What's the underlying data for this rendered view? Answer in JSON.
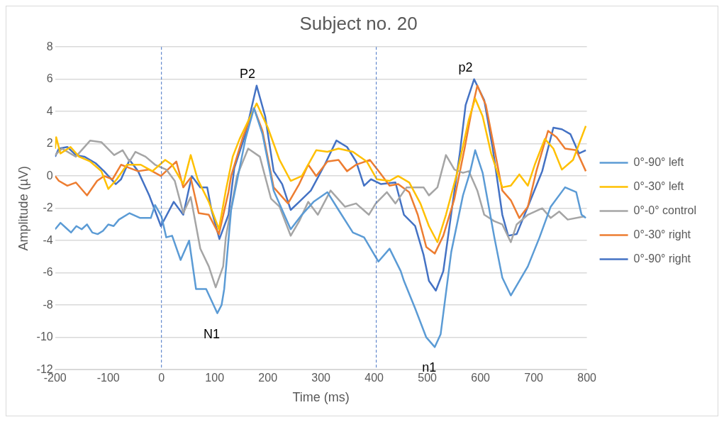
{
  "chart_data": {
    "type": "line",
    "title": "Subject no. 20",
    "xlabel": "Time (ms)",
    "ylabel": "Amplitude (µV)",
    "xlim": [
      -200,
      800
    ],
    "xticks": [
      -200,
      -100,
      0,
      100,
      200,
      300,
      400,
      500,
      600,
      700,
      800
    ],
    "ylim": [
      -12,
      8
    ],
    "yticks": [
      -12,
      -10,
      -8,
      -6,
      -4,
      -2,
      0,
      2,
      4,
      6,
      8
    ],
    "grid": "y",
    "legend": "right",
    "marker": "none",
    "line_style": "solid",
    "ref_lines": [
      {
        "axis": "x",
        "value": 0,
        "color": "#4472c4",
        "line_style": "dashed"
      },
      {
        "axis": "x",
        "value": 404,
        "color": "#4472c4",
        "line_style": "dashed"
      }
    ],
    "annotations": [
      {
        "text": "N1",
        "x": 105,
        "y": -8.5
      },
      {
        "text": "P2",
        "x": 179,
        "y": 5.6
      },
      {
        "text": "n1",
        "x": 514,
        "y": -10.6
      },
      {
        "text": "p2",
        "x": 588,
        "y": 6.0
      }
    ],
    "series": [
      {
        "name": "0°-90° left",
        "color": "#5b9bd5",
        "x": [
          -200,
          -190,
          -180,
          -170,
          -160,
          -150,
          -140,
          -130,
          -120,
          -110,
          -100,
          -90,
          -80,
          -60,
          -40,
          -20,
          -12,
          0,
          9,
          20,
          36,
          52,
          65,
          84,
          105,
          113,
          118,
          131,
          158,
          174,
          190,
          211,
          243,
          264,
          286,
          312,
          333,
          360,
          381,
          408,
          429,
          450,
          456,
          477,
          498,
          514,
          525,
          545,
          567,
          580,
          590,
          604,
          626,
          641,
          657,
          673,
          689,
          711,
          732,
          759,
          780,
          790,
          798
        ],
        "values": [
          -3.3,
          -2.9,
          -3.2,
          -3.5,
          -3.1,
          -3.3,
          -3.0,
          -3.5,
          -3.6,
          -3.4,
          -3.0,
          -3.1,
          -2.7,
          -2.3,
          -2.6,
          -2.6,
          -1.8,
          -2.5,
          -3.8,
          -3.7,
          -5.2,
          -4.0,
          -7.0,
          -7.0,
          -8.5,
          -8.0,
          -7.0,
          -2.1,
          2.3,
          4.2,
          2.6,
          -0.9,
          -3.3,
          -2.4,
          -1.6,
          -1.0,
          -2.1,
          -3.5,
          -3.8,
          -5.3,
          -4.5,
          -5.9,
          -6.5,
          -8.2,
          -10.0,
          -10.6,
          -9.8,
          -4.7,
          -1.2,
          0.2,
          1.6,
          0.2,
          -3.8,
          -6.3,
          -7.4,
          -6.5,
          -5.6,
          -3.8,
          -1.9,
          -0.7,
          -1.0,
          -2.4,
          -2.6
        ]
      },
      {
        "name": "0°-30° left",
        "color": "#ffc000",
        "x": [
          -200,
          -198,
          -190,
          -171,
          -155,
          -134,
          -113,
          -100,
          -84,
          -65,
          -39,
          -17,
          7,
          20,
          41,
          55,
          68,
          89,
          108,
          121,
          134,
          147,
          179,
          200,
          222,
          243,
          264,
          291,
          312,
          333,
          360,
          386,
          405,
          429,
          445,
          466,
          487,
          503,
          519,
          535,
          556,
          578,
          590,
          604,
          620,
          641,
          657,
          673,
          689,
          702,
          721,
          737,
          753,
          774,
          798
        ],
        "values": [
          1.7,
          2.4,
          1.4,
          1.8,
          1.2,
          0.9,
          0.3,
          -0.8,
          -0.2,
          0.7,
          0.7,
          0.3,
          1.0,
          0.7,
          -0.5,
          1.3,
          -0.2,
          -1.6,
          -3.3,
          -0.9,
          1.2,
          2.3,
          4.5,
          3.0,
          1.0,
          -0.3,
          0,
          1.6,
          1.5,
          1.7,
          1.5,
          0.9,
          -0.2,
          -0.3,
          0,
          -0.4,
          -1.7,
          -3.1,
          -4.1,
          -2.4,
          0.2,
          3.5,
          4.8,
          3.7,
          1.4,
          -0.7,
          -0.6,
          0.1,
          -0.6,
          0.7,
          2.3,
          1.7,
          0.4,
          1.0,
          3.1
        ]
      },
      {
        "name": "0°-0° control",
        "color": "#a5a5a5",
        "x": [
          -200,
          -187,
          -161,
          -134,
          -113,
          -89,
          -73,
          -60,
          -49,
          -30,
          -12,
          9,
          25,
          41,
          55,
          73,
          89,
          102,
          116,
          121,
          142,
          163,
          185,
          206,
          222,
          243,
          259,
          276,
          294,
          318,
          345,
          366,
          390,
          403,
          424,
          440,
          461,
          493,
          503,
          519,
          535,
          551,
          567,
          578,
          594,
          607,
          626,
          641,
          657,
          668,
          689,
          716,
          732,
          748,
          764,
          796
        ],
        "values": [
          1.3,
          1.7,
          1.2,
          2.2,
          2.1,
          1.3,
          1.6,
          0.9,
          1.5,
          1.2,
          0.7,
          0.4,
          -0.3,
          -2.3,
          -1.3,
          -4.5,
          -5.6,
          -6.9,
          -5.6,
          -3.8,
          0,
          1.7,
          1.2,
          -1.4,
          -1.9,
          -3.7,
          -2.8,
          -1.6,
          -2.4,
          -0.9,
          -1.9,
          -1.7,
          -2.4,
          -1.7,
          -1.0,
          -1.7,
          -0.7,
          -0.7,
          -1.2,
          -0.7,
          1.3,
          0.4,
          0.2,
          0.3,
          -0.9,
          -2.4,
          -2.8,
          -3.0,
          -4.1,
          -3.0,
          -2.4,
          -2.0,
          -2.6,
          -2.2,
          -2.7,
          -2.5
        ]
      },
      {
        "name": "0°-30° right",
        "color": "#ed7d31",
        "x": [
          -200,
          -193,
          -177,
          -161,
          -140,
          -121,
          -108,
          -92,
          -76,
          -60,
          -44,
          -23,
          -1,
          15,
          28,
          41,
          55,
          70,
          89,
          108,
          126,
          131,
          153,
          174,
          190,
          211,
          238,
          259,
          276,
          291,
          312,
          333,
          349,
          366,
          392,
          411,
          429,
          445,
          466,
          482,
          498,
          514,
          530,
          551,
          570,
          583,
          594,
          610,
          626,
          641,
          657,
          673,
          689,
          705,
          727,
          743,
          759,
          780,
          798
        ],
        "values": [
          0,
          -0.3,
          -0.6,
          -0.4,
          -1.2,
          -0.3,
          0,
          -0.2,
          0.7,
          0.5,
          0.3,
          0.4,
          0,
          0.5,
          0.9,
          -0.7,
          -0.1,
          -2.3,
          -2.4,
          -3.6,
          -1.0,
          0,
          2.4,
          4.2,
          2.8,
          -0.7,
          -1.7,
          -0.5,
          0.7,
          0,
          0.9,
          1.0,
          0.3,
          0.7,
          1.0,
          0.2,
          -0.6,
          -0.5,
          -1.0,
          -2.4,
          -4.4,
          -4.8,
          -3.7,
          -1.4,
          1.7,
          4.0,
          5.6,
          4.4,
          1.7,
          -0.9,
          -1.5,
          -2.6,
          -1.9,
          0.3,
          2.8,
          2.4,
          1.7,
          1.6,
          0.3
        ]
      },
      {
        "name": "0°-90° right",
        "color": "#4472c4",
        "x": [
          -200,
          -193,
          -177,
          -161,
          -145,
          -124,
          -108,
          -86,
          -76,
          -60,
          -44,
          -23,
          -1,
          23,
          41,
          57,
          73,
          86,
          94,
          109,
          126,
          137,
          158,
          179,
          195,
          211,
          227,
          243,
          259,
          281,
          307,
          329,
          349,
          366,
          381,
          394,
          413,
          440,
          456,
          477,
          493,
          503,
          516,
          530,
          548,
          561,
          572,
          588,
          607,
          623,
          641,
          652,
          668,
          689,
          716,
          737,
          753,
          769,
          785,
          798
        ],
        "values": [
          1.2,
          1.7,
          1.8,
          1.3,
          1.2,
          0.8,
          0.3,
          -0.5,
          -0.2,
          1.0,
          0.3,
          -1.2,
          -3.1,
          -1.6,
          -2.4,
          0,
          -0.7,
          -0.7,
          -2.1,
          -3.9,
          -2.4,
          0.5,
          2.6,
          5.6,
          3.7,
          0.3,
          -0.5,
          -2.1,
          -1.6,
          -0.9,
          0.7,
          2.2,
          1.8,
          0.9,
          -0.6,
          -0.2,
          -0.5,
          -0.4,
          -2.4,
          -3.1,
          -4.9,
          -6.5,
          -7.1,
          -5.9,
          -1.6,
          1.4,
          4.4,
          6.0,
          4.7,
          1.7,
          -2.4,
          -3.7,
          -3.6,
          -1.9,
          0.3,
          3.0,
          2.9,
          2.6,
          1.4,
          1.6
        ]
      }
    ]
  }
}
